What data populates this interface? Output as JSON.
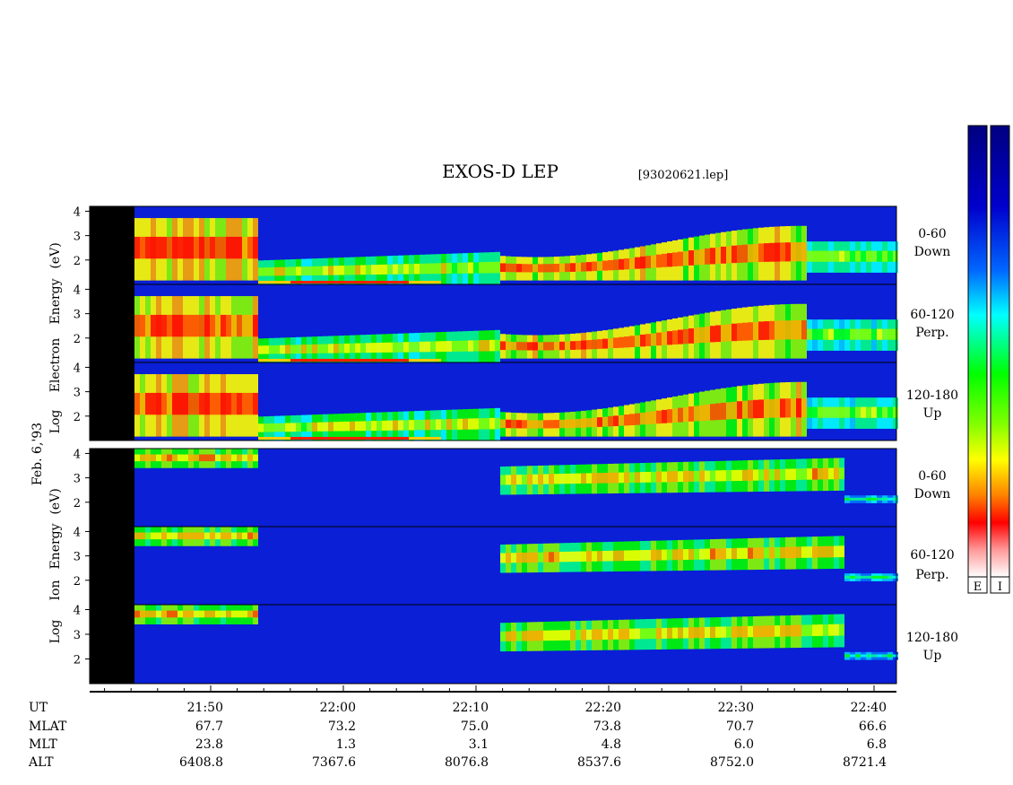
{
  "title": "EXOS-D LEP",
  "file_tag": "[93020621.lep]",
  "date_label": "Feb. 6,'93",
  "electron_ylabel": [
    "Log",
    "Electron",
    "Energy",
    "(eV)"
  ],
  "ion_ylabel": [
    "Log",
    "Ion",
    "Energy",
    "(eV)"
  ],
  "colorbar_labels": [
    "E",
    "I"
  ],
  "colors": {
    "background_blue": "#0a1fd6",
    "spectrum": [
      "#ffffff",
      "#ff0000",
      "#ffff00",
      "#00ff00",
      "#00ffff",
      "#0000cc",
      "#000080"
    ]
  },
  "chart_data": [
    {
      "type": "heatmap",
      "species": "Electron",
      "panels": [
        {
          "label_line1": "0-60",
          "label_line2": "Down"
        },
        {
          "label_line1": "60-120",
          "label_line2": "Perp."
        },
        {
          "label_line1": "120-180",
          "label_line2": "Up"
        }
      ],
      "y_ticks": [
        "2",
        "3",
        "4"
      ],
      "ylim": [
        1,
        4.2
      ]
    },
    {
      "type": "heatmap",
      "species": "Ion",
      "panels": [
        {
          "label_line1": "0-60",
          "label_line2": "Down"
        },
        {
          "label_line1": "60-120",
          "label_line2": "Perp."
        },
        {
          "label_line1": "120-180",
          "label_line2": "Up"
        }
      ],
      "y_ticks": [
        "2",
        "3",
        "4"
      ],
      "ylim": [
        1,
        4.2
      ]
    }
  ],
  "x_axis": {
    "row_labels": [
      "UT",
      "MLAT",
      "MLT",
      "ALT"
    ],
    "columns": [
      {
        "UT": "21:50",
        "MLAT": "67.7",
        "MLT": "23.8",
        "ALT": "6408.8"
      },
      {
        "UT": "22:00",
        "MLAT": "73.2",
        "MLT": "1.3",
        "ALT": "7367.6"
      },
      {
        "UT": "22:10",
        "MLAT": "75.0",
        "MLT": "3.1",
        "ALT": "8076.8"
      },
      {
        "UT": "22:20",
        "MLAT": "73.8",
        "MLT": "4.8",
        "ALT": "8537.6"
      },
      {
        "UT": "22:30",
        "MLAT": "70.7",
        "MLT": "6.0",
        "ALT": "8752.0"
      },
      {
        "UT": "22:40",
        "MLAT": "66.6",
        "MLT": "6.8",
        "ALT": "8721.4"
      }
    ]
  }
}
